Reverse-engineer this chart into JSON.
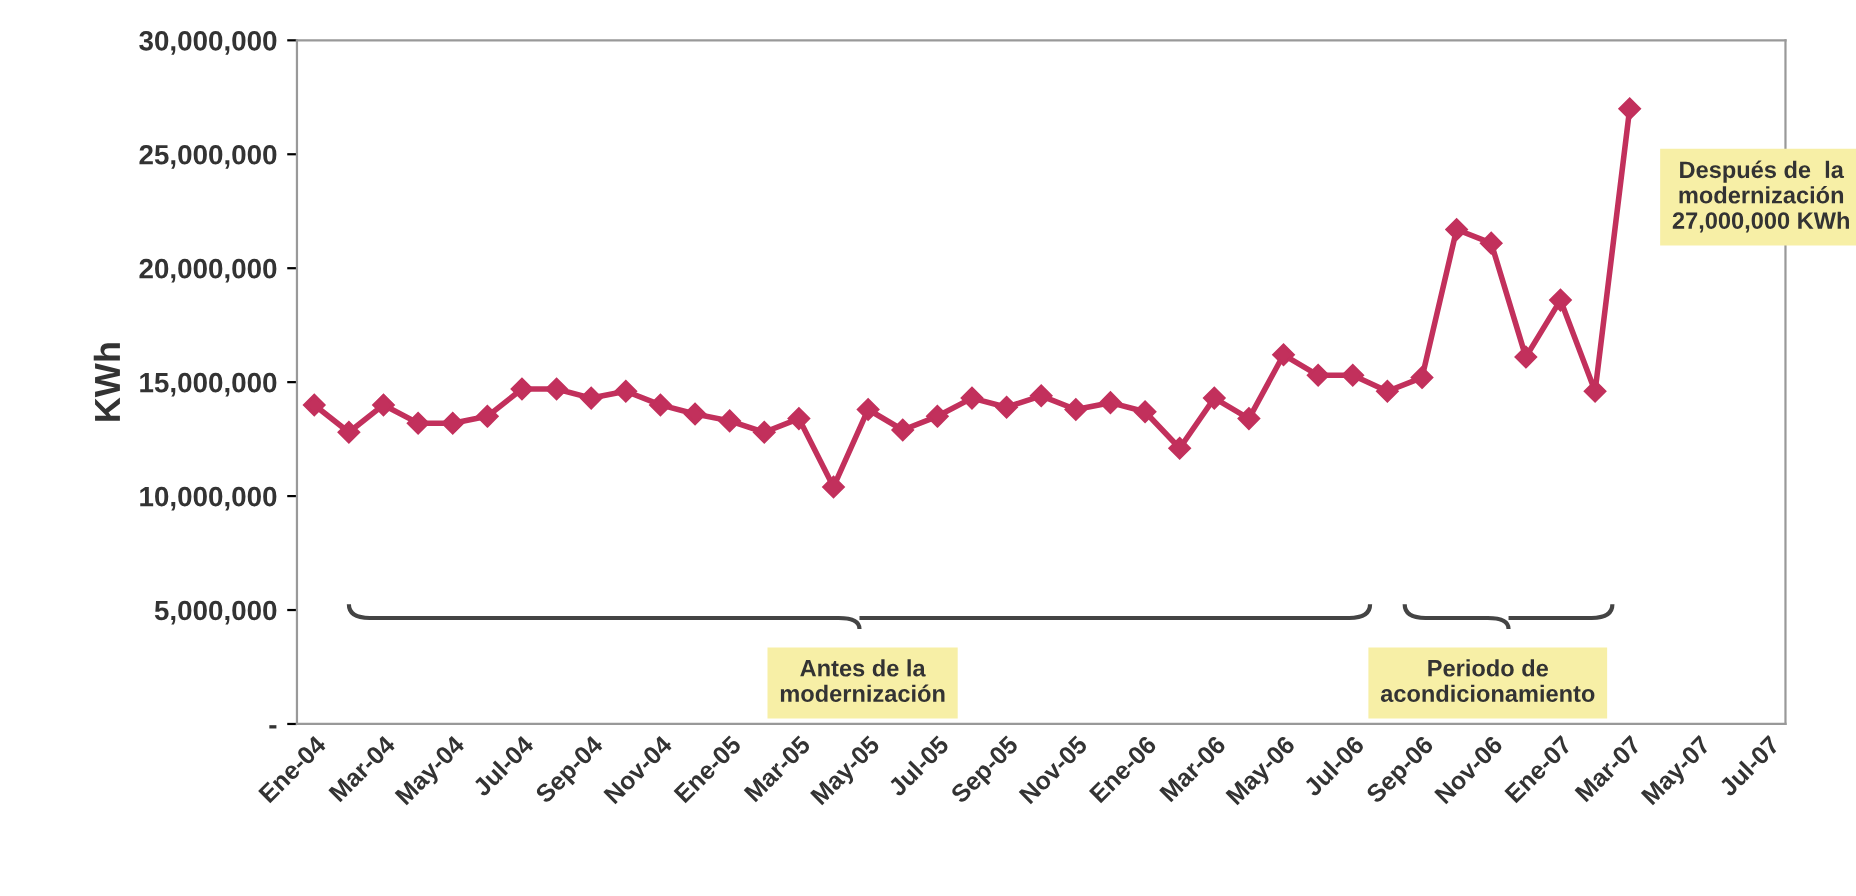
{
  "chart_data": {
    "type": "line",
    "ylabel": "KWh",
    "categories": [
      "Ene-04",
      null,
      "Mar-04",
      null,
      "May-04",
      null,
      "Jul-04",
      null,
      "Sep-04",
      null,
      "Nov-04",
      null,
      "Ene-05",
      null,
      "Mar-05",
      null,
      "May-05",
      null,
      "Jul-05",
      null,
      "Sep-05",
      null,
      "Nov-05",
      null,
      "Ene-06",
      null,
      "Mar-06",
      null,
      "May-06",
      null,
      "Jul-06",
      null,
      "Sep-06",
      null,
      "Nov-06",
      null,
      "Ene-07",
      null,
      "Mar-07",
      null,
      "May-07",
      null,
      "Jul-07"
    ],
    "series": [
      {
        "color": "#c2305c",
        "values": [
          14000000,
          12800000,
          14000000,
          13200000,
          13200000,
          13500000,
          14700000,
          14700000,
          14300000,
          14600000,
          14000000,
          13600000,
          13300000,
          12800000,
          13400000,
          10400000,
          13800000,
          12900000,
          13500000,
          14300000,
          13900000,
          14400000,
          13800000,
          14100000,
          13700000,
          12100000,
          14300000,
          13400000,
          16200000,
          15300000,
          15300000,
          14600000,
          15200000,
          21700000,
          21100000,
          16100000,
          18600000,
          14600000,
          27000000,
          null,
          null,
          null,
          null
        ]
      }
    ],
    "ylim": [
      0,
      30000000
    ],
    "yticks": [
      {
        "value": 0,
        "label": "-"
      },
      {
        "value": 5000000,
        "label": "5,000,000"
      },
      {
        "value": 10000000,
        "label": "10,000,000"
      },
      {
        "value": 15000000,
        "label": "15,000,000"
      },
      {
        "value": 20000000,
        "label": "20,000,000"
      },
      {
        "value": 25000000,
        "label": "25,000,000"
      },
      {
        "value": 30000000,
        "label": "30,000,000"
      }
    ],
    "marker": "diamond",
    "line_style": "solid",
    "grid": false,
    "legend": false,
    "annotations": [
      "Antes de la\nmodernización",
      "Periodo de\nacondicionamiento",
      "Después de  la\nmodernización\n27,000,000 KWh"
    ]
  }
}
